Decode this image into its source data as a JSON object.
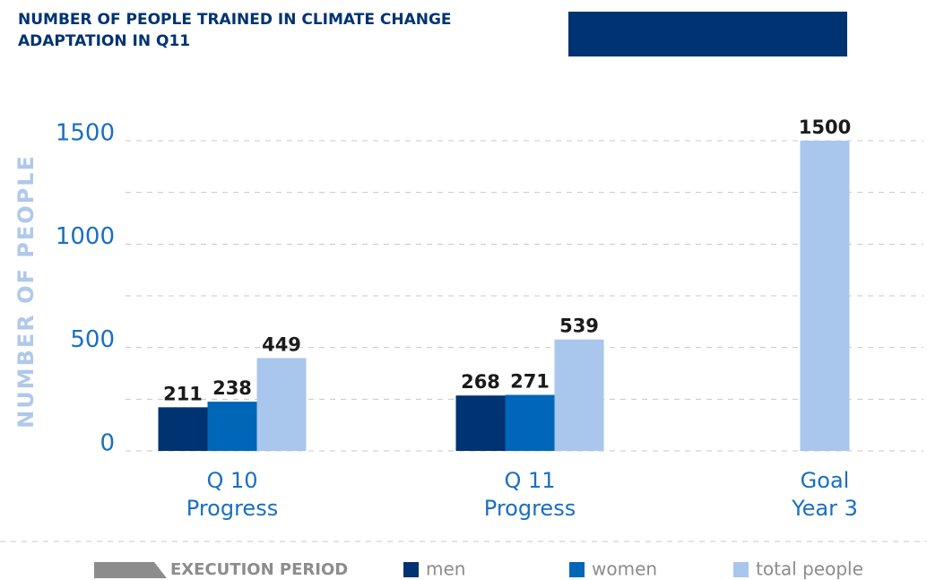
{
  "chart_data": {
    "type": "bar",
    "title": [
      "NUMBER OF PEOPLE TRAINED IN CLIMATE CHANGE",
      "ADAPTATION IN Q11"
    ],
    "y_label": "NUMBER OF PEOPLE",
    "categories": [
      "Q 10\nProgress",
      "Q 11\nProgress",
      "Goal\nYear 3"
    ],
    "series": [
      {
        "name": "men",
        "color": "#003371",
        "values": [
          211,
          268,
          null
        ]
      },
      {
        "name": "women",
        "color": "#0066b8",
        "values": [
          238,
          271,
          null
        ]
      },
      {
        "name": "total people",
        "color": "#a9c6ec",
        "values": [
          449,
          539,
          1500
        ]
      }
    ],
    "legend_note": "EXECUTION PERIOD",
    "ylim": [
      0,
      1500
    ],
    "yticks": [
      0,
      500,
      1000,
      1500
    ],
    "minor_yticks": [
      250,
      750,
      1250
    ],
    "grid": true
  }
}
